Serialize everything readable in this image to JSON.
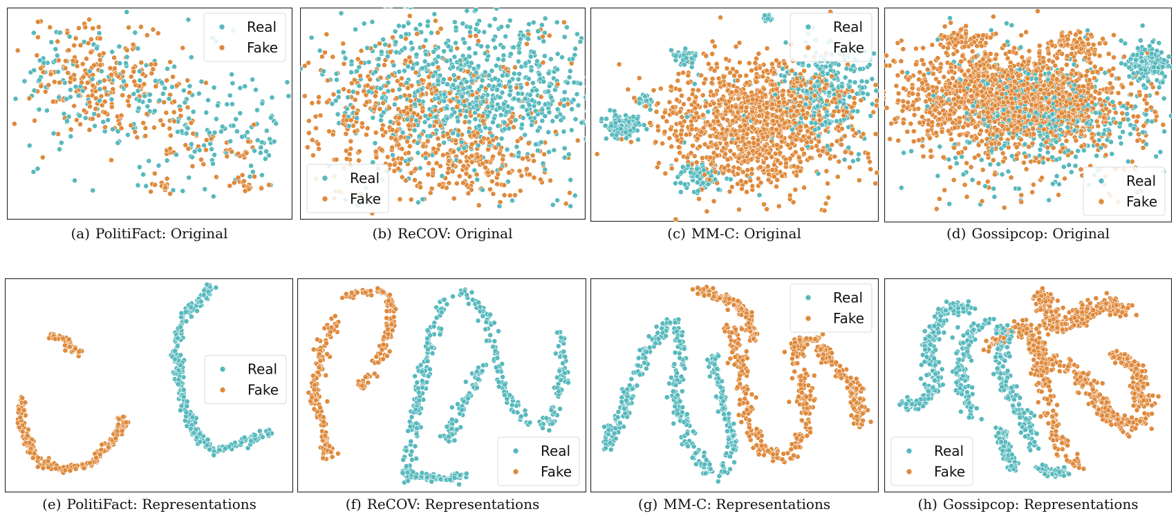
{
  "colors": {
    "real": "#57b9bd",
    "fake": "#df8a3c"
  },
  "chart_data": [
    {
      "type": "scatter",
      "tag": "(a)",
      "caption": "PolitiFact: Original",
      "legend": "top-right",
      "series": [
        {
          "name": "Real",
          "values": []
        },
        {
          "name": "Fake",
          "values": []
        }
      ]
    },
    {
      "type": "scatter",
      "tag": "(b)",
      "caption": "ReCOV: Original",
      "legend": "bottom-left",
      "series": [
        {
          "name": "Real",
          "values": []
        },
        {
          "name": "Fake",
          "values": []
        }
      ]
    },
    {
      "type": "scatter",
      "tag": "(c)",
      "caption": "MM-C: Original",
      "legend": "top-right",
      "series": [
        {
          "name": "Real",
          "values": []
        },
        {
          "name": "Fake",
          "values": []
        }
      ]
    },
    {
      "type": "scatter",
      "tag": "(d)",
      "caption": "Gossipcop: Original",
      "legend": "bottom-right",
      "series": [
        {
          "name": "Real",
          "values": []
        },
        {
          "name": "Fake",
          "values": []
        }
      ]
    },
    {
      "type": "scatter",
      "tag": "(e)",
      "caption": "PolitiFact: Representations",
      "legend": "middle-right",
      "series": [
        {
          "name": "Real",
          "values": []
        },
        {
          "name": "Fake",
          "values": []
        }
      ]
    },
    {
      "type": "scatter",
      "tag": "(f)",
      "caption": "ReCOV: Representations",
      "legend": "bottom-right",
      "series": [
        {
          "name": "Real",
          "values": []
        },
        {
          "name": "Fake",
          "values": []
        }
      ]
    },
    {
      "type": "scatter",
      "tag": "(g)",
      "caption": "MM-C: Representations",
      "legend": "top-right",
      "series": [
        {
          "name": "Real",
          "values": []
        },
        {
          "name": "Fake",
          "values": []
        }
      ]
    },
    {
      "type": "scatter",
      "tag": "(h)",
      "caption": "Gossipcop: Representations",
      "legend": "bottom-left",
      "series": [
        {
          "name": "Real",
          "values": []
        },
        {
          "name": "Fake",
          "values": []
        }
      ]
    }
  ]
}
